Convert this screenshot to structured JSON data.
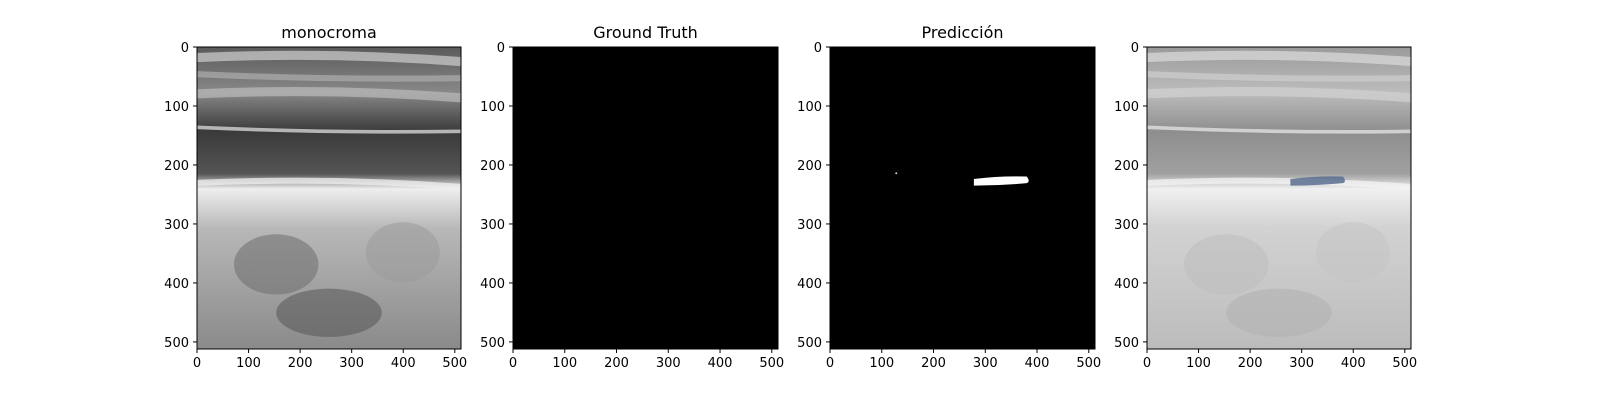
{
  "chart_data": [
    {
      "type": "image",
      "title": "monocroma",
      "content": "ultrasound-grayscale",
      "xlim": [
        0,
        512
      ],
      "ylim": [
        512,
        0
      ],
      "xticks": [
        0,
        100,
        200,
        300,
        400,
        500
      ],
      "yticks": [
        0,
        100,
        200,
        300,
        400,
        500
      ]
    },
    {
      "type": "image",
      "title": "Ground Truth",
      "content": "empty-mask",
      "xlim": [
        0,
        512
      ],
      "ylim": [
        512,
        0
      ],
      "xticks": [
        0,
        100,
        200,
        300,
        400,
        500
      ],
      "yticks": [
        0,
        100,
        200,
        300,
        400,
        500
      ]
    },
    {
      "type": "image",
      "title": "Predicción",
      "content": "binary-mask",
      "xlim": [
        0,
        512
      ],
      "ylim": [
        512,
        0
      ],
      "xticks": [
        0,
        100,
        200,
        300,
        400,
        500
      ],
      "yticks": [
        0,
        100,
        200,
        300,
        400,
        500
      ],
      "regions": [
        {
          "x_range": [
            278,
            380
          ],
          "y_center": 228,
          "height": 14
        },
        {
          "x": 128,
          "y": 214,
          "kind": "speck"
        }
      ]
    },
    {
      "type": "image",
      "title": "",
      "content": "overlay",
      "xlim": [
        0,
        512
      ],
      "ylim": [
        512,
        0
      ],
      "xticks": [
        0,
        100,
        200,
        300,
        400,
        500
      ],
      "yticks": [
        0,
        100,
        200,
        300,
        400,
        500
      ],
      "overlay_color": "#5a6f8f"
    }
  ]
}
